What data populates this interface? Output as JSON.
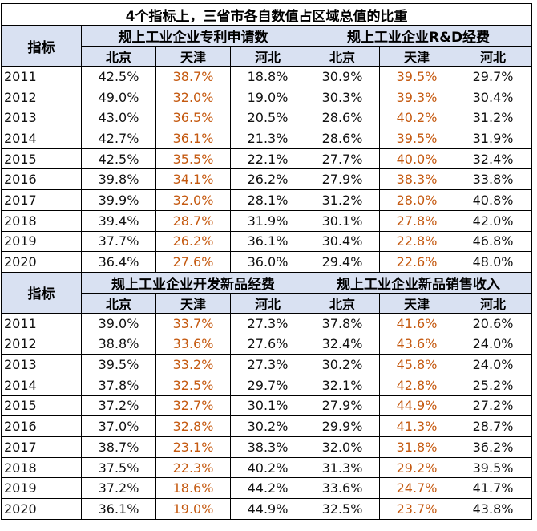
{
  "title": "4个指标上，三省市各自数值占区域总值的比重",
  "row_header": "指标",
  "cities": [
    "北京",
    "天津",
    "河北"
  ],
  "colors": {
    "header_bg": "#d9e1f2",
    "tianjin_text": "#c55a11",
    "border": "#000000"
  },
  "sections": [
    {
      "indicators": [
        "规上工业企业专利申请数",
        "规上工业企业R&D经费"
      ],
      "rows": [
        {
          "year": "2011",
          "values": [
            "42.5%",
            "38.7%",
            "18.8%",
            "30.9%",
            "39.5%",
            "29.7%"
          ]
        },
        {
          "year": "2012",
          "values": [
            "49.0%",
            "32.0%",
            "19.0%",
            "30.3%",
            "39.3%",
            "30.4%"
          ]
        },
        {
          "year": "2013",
          "values": [
            "43.0%",
            "36.5%",
            "20.5%",
            "28.6%",
            "40.2%",
            "31.2%"
          ]
        },
        {
          "year": "2014",
          "values": [
            "42.7%",
            "36.1%",
            "21.3%",
            "28.6%",
            "39.5%",
            "31.9%"
          ]
        },
        {
          "year": "2015",
          "values": [
            "42.5%",
            "35.5%",
            "22.1%",
            "27.7%",
            "40.0%",
            "32.4%"
          ]
        },
        {
          "year": "2016",
          "values": [
            "39.8%",
            "34.1%",
            "26.2%",
            "27.9%",
            "38.3%",
            "33.8%"
          ]
        },
        {
          "year": "2017",
          "values": [
            "39.9%",
            "32.0%",
            "28.1%",
            "31.2%",
            "28.0%",
            "40.8%"
          ]
        },
        {
          "year": "2018",
          "values": [
            "39.4%",
            "28.7%",
            "31.9%",
            "30.1%",
            "27.8%",
            "42.0%"
          ]
        },
        {
          "year": "2019",
          "values": [
            "37.7%",
            "26.2%",
            "36.1%",
            "30.4%",
            "22.8%",
            "46.8%"
          ]
        },
        {
          "year": "2020",
          "values": [
            "36.4%",
            "27.6%",
            "36.0%",
            "29.4%",
            "22.6%",
            "48.0%"
          ]
        }
      ]
    },
    {
      "indicators": [
        "规上工业企业开发新品经费",
        "规上工业企业新品销售收入"
      ],
      "rows": [
        {
          "year": "2011",
          "values": [
            "39.0%",
            "33.7%",
            "27.3%",
            "37.8%",
            "41.6%",
            "20.6%"
          ]
        },
        {
          "year": "2012",
          "values": [
            "38.8%",
            "33.6%",
            "27.6%",
            "32.4%",
            "43.6%",
            "24.0%"
          ]
        },
        {
          "year": "2013",
          "values": [
            "39.5%",
            "33.2%",
            "27.3%",
            "30.2%",
            "45.8%",
            "24.0%"
          ]
        },
        {
          "year": "2014",
          "values": [
            "37.8%",
            "32.5%",
            "29.7%",
            "32.1%",
            "42.8%",
            "25.2%"
          ]
        },
        {
          "year": "2015",
          "values": [
            "37.2%",
            "32.7%",
            "30.1%",
            "27.9%",
            "44.9%",
            "27.2%"
          ]
        },
        {
          "year": "2016",
          "values": [
            "37.0%",
            "32.8%",
            "30.2%",
            "29.9%",
            "41.3%",
            "28.7%"
          ]
        },
        {
          "year": "2017",
          "values": [
            "38.7%",
            "23.1%",
            "38.3%",
            "32.0%",
            "31.8%",
            "36.2%"
          ]
        },
        {
          "year": "2018",
          "values": [
            "37.5%",
            "22.3%",
            "40.2%",
            "31.3%",
            "29.2%",
            "39.5%"
          ]
        },
        {
          "year": "2019",
          "values": [
            "37.2%",
            "18.6%",
            "44.2%",
            "33.6%",
            "24.7%",
            "41.7%"
          ]
        },
        {
          "year": "2020",
          "values": [
            "36.1%",
            "19.0%",
            "44.9%",
            "32.5%",
            "23.7%",
            "43.8%"
          ]
        }
      ]
    }
  ]
}
